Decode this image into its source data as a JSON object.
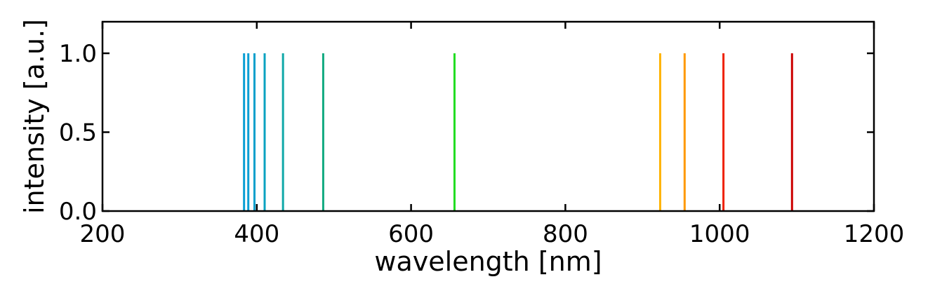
{
  "chart_data": {
    "type": "line",
    "subtype": "emission-line-spectrum",
    "xlabel": "wavelength [nm]",
    "ylabel": "intensity [a.u.]",
    "xlim": [
      200,
      1200
    ],
    "ylim": [
      0,
      1.2
    ],
    "x_ticks": [
      200,
      400,
      600,
      800,
      1000,
      1200
    ],
    "x_tick_labels": [
      "200",
      "400",
      "600",
      "800",
      "1000",
      "1200"
    ],
    "y_ticks": [
      0.0,
      0.5,
      1.0
    ],
    "y_tick_labels": [
      "0.0",
      "0.5",
      "1.0"
    ],
    "grid": false,
    "legend": "none",
    "lines": [
      {
        "x": 383.5,
        "y": 1.0,
        "color": "#0a9fd4"
      },
      {
        "x": 389.0,
        "y": 1.0,
        "color": "#0a9fd4"
      },
      {
        "x": 397.0,
        "y": 1.0,
        "color": "#0aa0cc"
      },
      {
        "x": 410.2,
        "y": 1.0,
        "color": "#0aa2c0"
      },
      {
        "x": 434.0,
        "y": 1.0,
        "color": "#10a8a8"
      },
      {
        "x": 486.1,
        "y": 1.0,
        "color": "#12aa80"
      },
      {
        "x": 656.3,
        "y": 1.0,
        "color": "#22dd22"
      },
      {
        "x": 922.9,
        "y": 1.0,
        "color": "#ffb300"
      },
      {
        "x": 954.6,
        "y": 1.0,
        "color": "#ff9900"
      },
      {
        "x": 1004.9,
        "y": 1.0,
        "color": "#ee2200"
      },
      {
        "x": 1093.8,
        "y": 1.0,
        "color": "#cc0000"
      }
    ]
  }
}
